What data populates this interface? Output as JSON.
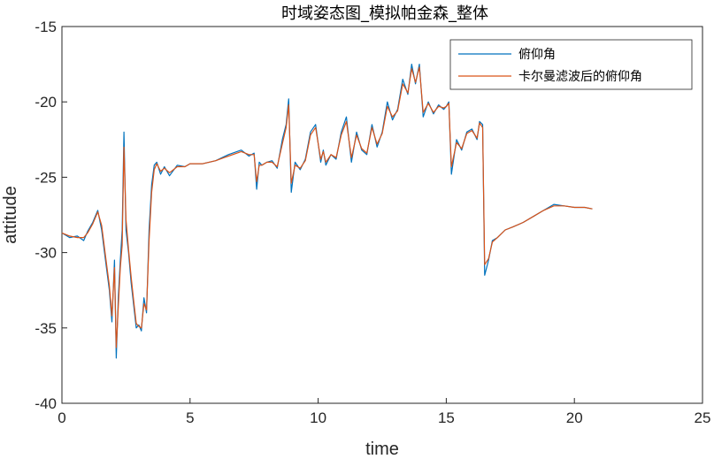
{
  "chart_data": {
    "type": "line",
    "title": "时域姿态图_模拟帕金森_整体",
    "xlabel": "time",
    "ylabel": "attitude",
    "xlim": [
      0,
      25
    ],
    "ylim": [
      -40,
      -15
    ],
    "xticks": [
      0,
      5,
      10,
      15,
      20,
      25
    ],
    "yticks": [
      -15,
      -20,
      -25,
      -30,
      -35,
      -40
    ],
    "legend_position": "top-right",
    "grid": false,
    "series": [
      {
        "name": "俯仰角",
        "color": "#0072BD",
        "x": [
          0,
          0.3,
          0.6,
          0.85,
          1.0,
          1.2,
          1.4,
          1.55,
          1.7,
          1.85,
          1.95,
          2.05,
          2.12,
          2.2,
          2.28,
          2.35,
          2.42,
          2.5,
          2.6,
          2.7,
          2.8,
          2.9,
          3.0,
          3.1,
          3.2,
          3.3,
          3.4,
          3.5,
          3.6,
          3.7,
          3.85,
          4.0,
          4.2,
          4.5,
          4.8,
          5.0,
          5.5,
          6.0,
          6.5,
          7.0,
          7.3,
          7.5,
          7.6,
          7.7,
          7.8,
          8.0,
          8.2,
          8.4,
          8.6,
          8.75,
          8.85,
          8.95,
          9.1,
          9.3,
          9.5,
          9.7,
          9.9,
          10.1,
          10.2,
          10.3,
          10.5,
          10.7,
          10.9,
          11.1,
          11.3,
          11.5,
          11.7,
          11.9,
          12.1,
          12.3,
          12.5,
          12.7,
          12.9,
          13.1,
          13.3,
          13.5,
          13.65,
          13.8,
          13.95,
          14.1,
          14.3,
          14.5,
          14.7,
          14.9,
          15.0,
          15.1,
          15.2,
          15.4,
          15.6,
          15.8,
          16.0,
          16.2,
          16.3,
          16.42,
          16.5,
          16.65,
          16.8,
          17.0,
          17.3,
          17.6,
          18.0,
          18.4,
          18.8,
          19.2,
          19.6,
          20.0,
          20.4,
          20.7
        ],
        "y": [
          -28.7,
          -29.0,
          -28.9,
          -29.2,
          -28.6,
          -28.0,
          -27.2,
          -28.5,
          -30.5,
          -32.5,
          -34.6,
          -30.5,
          -37.0,
          -33.0,
          -30.5,
          -28.5,
          -22.0,
          -28.5,
          -30.0,
          -32.0,
          -33.5,
          -35.0,
          -34.8,
          -35.2,
          -33.0,
          -34.0,
          -28.5,
          -25.5,
          -24.2,
          -24.0,
          -24.8,
          -24.3,
          -24.9,
          -24.2,
          -24.3,
          -24.1,
          -24.1,
          -23.9,
          -23.5,
          -23.2,
          -23.6,
          -23.4,
          -25.8,
          -24.0,
          -24.2,
          -24.0,
          -23.9,
          -24.4,
          -22.5,
          -21.5,
          -19.8,
          -26.0,
          -24.0,
          -24.5,
          -23.8,
          -22.0,
          -21.5,
          -24.0,
          -23.2,
          -24.2,
          -23.5,
          -23.8,
          -22.0,
          -21.0,
          -24.0,
          -22.0,
          -23.2,
          -23.5,
          -21.5,
          -23.0,
          -22.0,
          -20.0,
          -21.2,
          -20.5,
          -18.5,
          -19.5,
          -17.5,
          -18.8,
          -17.5,
          -21.0,
          -20.0,
          -20.8,
          -20.2,
          -20.5,
          -20.3,
          -20.0,
          -24.8,
          -22.5,
          -23.2,
          -22.0,
          -21.8,
          -22.5,
          -21.3,
          -21.5,
          -31.5,
          -30.5,
          -29.2,
          -29.0,
          -28.5,
          -28.3,
          -28.0,
          -27.6,
          -27.2,
          -26.8,
          -26.9,
          -27.0,
          -27.0,
          -27.1
        ]
      },
      {
        "name": "卡尔曼滤波后的俯仰角",
        "color": "#D95319",
        "x": [
          0,
          0.3,
          0.6,
          0.85,
          1.0,
          1.2,
          1.4,
          1.55,
          1.7,
          1.85,
          1.95,
          2.05,
          2.12,
          2.2,
          2.28,
          2.35,
          2.42,
          2.5,
          2.6,
          2.7,
          2.8,
          2.9,
          3.0,
          3.1,
          3.2,
          3.3,
          3.4,
          3.5,
          3.6,
          3.7,
          3.85,
          4.0,
          4.2,
          4.5,
          4.8,
          5.0,
          5.5,
          6.0,
          6.5,
          7.0,
          7.3,
          7.5,
          7.6,
          7.7,
          7.8,
          8.0,
          8.2,
          8.4,
          8.6,
          8.75,
          8.85,
          8.95,
          9.1,
          9.3,
          9.5,
          9.7,
          9.9,
          10.1,
          10.2,
          10.3,
          10.5,
          10.7,
          10.9,
          11.1,
          11.3,
          11.5,
          11.7,
          11.9,
          12.1,
          12.3,
          12.5,
          12.7,
          12.9,
          13.1,
          13.3,
          13.5,
          13.65,
          13.8,
          13.95,
          14.1,
          14.3,
          14.5,
          14.7,
          14.9,
          15.0,
          15.1,
          15.2,
          15.4,
          15.6,
          15.8,
          16.0,
          16.2,
          16.3,
          16.42,
          16.5,
          16.65,
          16.8,
          17.0,
          17.3,
          17.6,
          18.0,
          18.4,
          18.8,
          19.2,
          19.6,
          20.0,
          20.4,
          20.7
        ],
        "y": [
          -28.7,
          -28.9,
          -29.0,
          -29.0,
          -28.7,
          -28.1,
          -27.3,
          -28.2,
          -30.2,
          -32.2,
          -34.2,
          -31.0,
          -36.3,
          -33.6,
          -31.0,
          -29.5,
          -23.0,
          -27.8,
          -29.8,
          -31.6,
          -33.2,
          -34.7,
          -34.9,
          -35.0,
          -33.4,
          -33.8,
          -29.2,
          -26.0,
          -24.5,
          -24.1,
          -24.6,
          -24.4,
          -24.7,
          -24.3,
          -24.3,
          -24.1,
          -24.1,
          -23.9,
          -23.6,
          -23.3,
          -23.5,
          -23.5,
          -25.3,
          -24.2,
          -24.2,
          -24.0,
          -24.0,
          -24.3,
          -22.8,
          -21.7,
          -20.2,
          -25.4,
          -24.2,
          -24.4,
          -23.9,
          -22.2,
          -21.7,
          -23.8,
          -23.3,
          -24.0,
          -23.5,
          -23.7,
          -22.2,
          -21.3,
          -23.7,
          -22.2,
          -23.1,
          -23.4,
          -21.7,
          -22.8,
          -22.1,
          -20.3,
          -21.0,
          -20.6,
          -18.8,
          -19.4,
          -17.8,
          -18.7,
          -17.7,
          -20.7,
          -20.1,
          -20.7,
          -20.3,
          -20.4,
          -20.3,
          -20.1,
          -24.3,
          -22.7,
          -23.1,
          -22.1,
          -21.9,
          -22.4,
          -21.4,
          -21.7,
          -30.8,
          -30.4,
          -29.3,
          -29.0,
          -28.5,
          -28.3,
          -28.0,
          -27.6,
          -27.2,
          -26.9,
          -26.9,
          -27.0,
          -27.0,
          -27.1
        ]
      }
    ]
  }
}
